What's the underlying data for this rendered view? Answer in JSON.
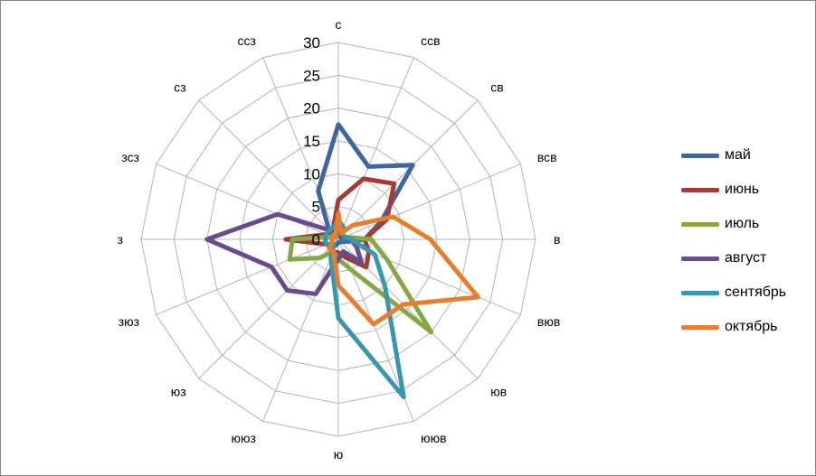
{
  "chart_data": {
    "type": "radar",
    "title": "",
    "directions": [
      "с",
      "ссв",
      "св",
      "всв",
      "в",
      "вюв",
      "юв",
      "ююв",
      "ю",
      "ююз",
      "юз",
      "зюз",
      "з",
      "зсз",
      "сз",
      "ссз"
    ],
    "r_ticks": [
      "0",
      "5",
      "10",
      "15",
      "20",
      "25",
      "30"
    ],
    "r_range": [
      0,
      30
    ],
    "grid": true,
    "legend_position": "right",
    "series": [
      {
        "name": "май",
        "color": "#4065A0",
        "values": [
          17.5,
          12,
          16,
          7,
          4,
          1,
          0.5,
          0.5,
          0.5,
          1,
          1.5,
          2,
          2,
          2,
          2,
          8
        ]
      },
      {
        "name": "июнь",
        "color": "#A33B38",
        "values": [
          6,
          10,
          12,
          8,
          4,
          5,
          6,
          3,
          2,
          2,
          1.5,
          2,
          8,
          2,
          1,
          2
        ]
      },
      {
        "name": "июль",
        "color": "#85A844",
        "values": [
          2,
          0.5,
          0.5,
          1,
          5,
          8,
          20,
          5,
          3,
          2,
          4,
          8,
          7,
          1,
          0.5,
          0.5
        ]
      },
      {
        "name": "август",
        "color": "#6A4B8B",
        "values": [
          1,
          1,
          0.5,
          1,
          2,
          3,
          5,
          2,
          3,
          9,
          11,
          11,
          20,
          10,
          2,
          2
        ]
      },
      {
        "name": "сентябрь",
        "color": "#3896AE",
        "values": [
          3,
          2,
          1,
          1,
          2,
          6,
          10,
          26,
          12,
          3,
          1,
          2,
          2,
          2,
          2,
          2
        ]
      },
      {
        "name": "октябрь",
        "color": "#E57F2D",
        "values": [
          4,
          1,
          3,
          9,
          14,
          23,
          14,
          14,
          7,
          2,
          2,
          1,
          1,
          1,
          1,
          1
        ]
      }
    ]
  }
}
